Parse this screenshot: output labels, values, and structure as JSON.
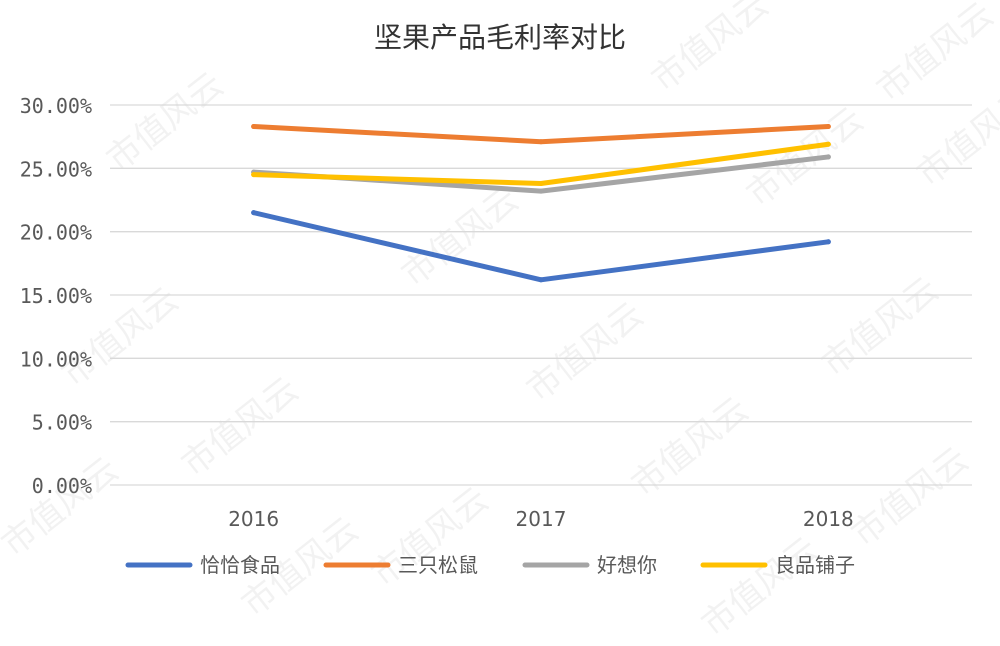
{
  "watermark": "市值风云",
  "chart_data": {
    "type": "line",
    "title": "坚果产品毛利率对比",
    "categories": [
      "2016",
      "2017",
      "2018"
    ],
    "ylim": [
      0,
      30
    ],
    "yticks": [
      0,
      5,
      10,
      15,
      20,
      25,
      30
    ],
    "ytick_labels": [
      "0.00%",
      "5.00%",
      "10.00%",
      "15.00%",
      "20.00%",
      "25.00%",
      "30.00%"
    ],
    "grid": true,
    "legend_position": "bottom",
    "series": [
      {
        "name": "恰恰食品",
        "color": "#4472C4",
        "values": [
          21.5,
          16.2,
          19.2
        ]
      },
      {
        "name": "三只松鼠",
        "color": "#ED7D31",
        "values": [
          28.3,
          27.1,
          28.3
        ]
      },
      {
        "name": "好想你",
        "color": "#A5A5A5",
        "values": [
          24.7,
          23.2,
          25.9
        ]
      },
      {
        "name": "良品铺子",
        "color": "#FFC000",
        "values": [
          24.5,
          23.8,
          26.9
        ]
      }
    ]
  }
}
